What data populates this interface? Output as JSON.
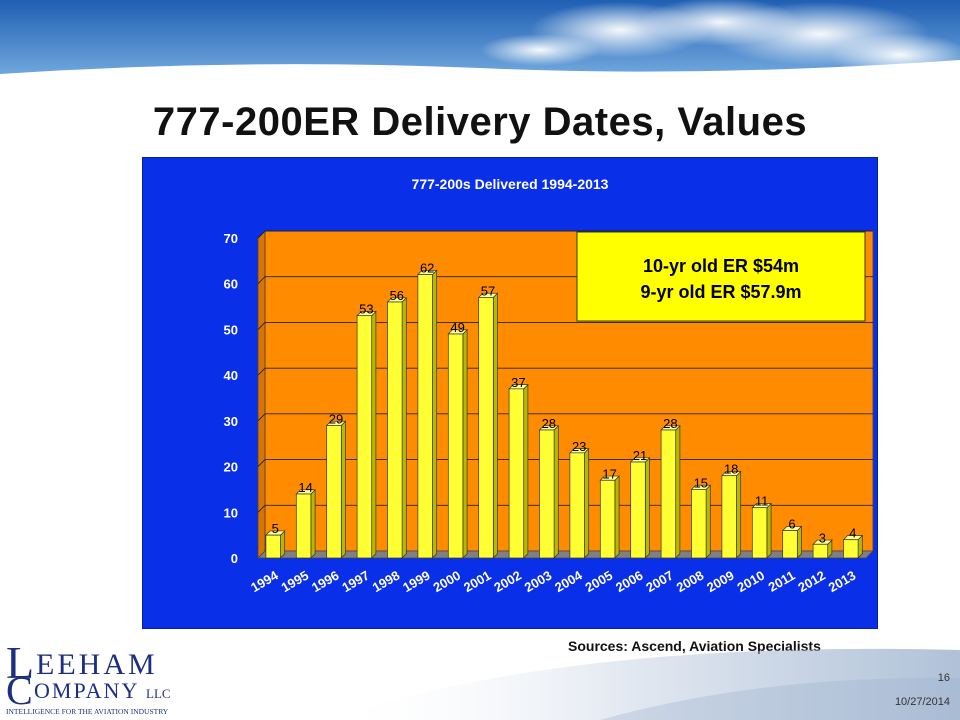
{
  "slide": {
    "title": "777-200ER Delivery Dates, Values",
    "sources": "Sources: Ascend, Aviation Specialists",
    "page_number": "16",
    "date": "10/27/2014"
  },
  "logo": {
    "line1": "EEHAM",
    "line2": "OMPANY",
    "llc": "LLC",
    "tagline": "INTELLIGENCE FOR THE AVIATION INDUSTRY",
    "initial1": "L",
    "initial2": "C"
  },
  "chart_data": {
    "type": "bar",
    "title": "777-200s Delivered 1994-2013",
    "categories": [
      "1994",
      "1995",
      "1996",
      "1997",
      "1998",
      "1999",
      "2000",
      "2001",
      "2002",
      "2003",
      "2004",
      "2005",
      "2006",
      "2007",
      "2008",
      "2009",
      "2010",
      "2011",
      "2012",
      "2013"
    ],
    "values": [
      5,
      14,
      29,
      53,
      56,
      62,
      49,
      57,
      37,
      28,
      23,
      17,
      21,
      28,
      15,
      18,
      11,
      6,
      3,
      4
    ],
    "ylim": [
      0,
      70
    ],
    "yticks": [
      0,
      10,
      20,
      30,
      40,
      50,
      60,
      70
    ],
    "grid": true,
    "annotation": [
      "10-yr old ER $54m",
      "9-yr old ER $57.9m"
    ],
    "colors": {
      "background": "#0a2fe8",
      "plot_area": "#ff8c00",
      "bar": "#ffff33",
      "bar_side": "#b8b800",
      "floor": "#808080",
      "annotation_box": "#ffff00",
      "axis_text": "#ffffff"
    }
  }
}
